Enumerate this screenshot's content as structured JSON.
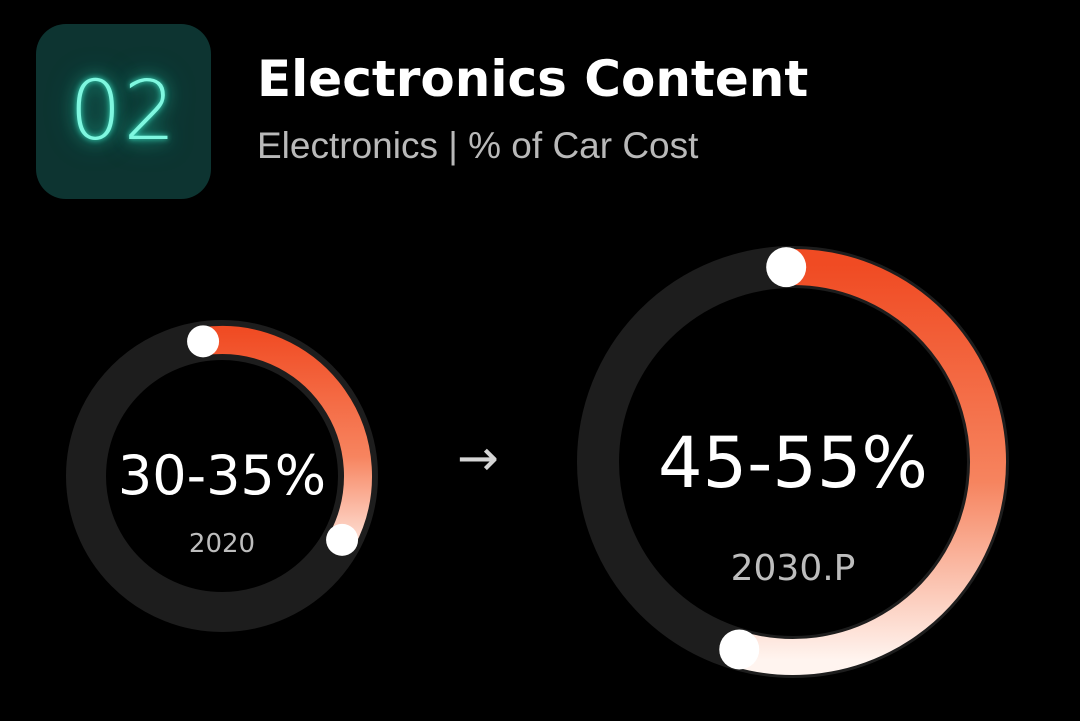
{
  "badge": {
    "number": "02"
  },
  "header": {
    "title": "Electronics Content",
    "subtitle": "Electronics | % of Car Cost"
  },
  "arrow": "→",
  "colors": {
    "accent": "#f04b23",
    "track": "#1d1d1d",
    "badge_bg": "#0d3431",
    "badge_glow": "#3fe7c8"
  },
  "chart_data": {
    "type": "pie",
    "unit": "%",
    "series": [
      {
        "label": "2020",
        "value_text": "30-35%",
        "range": [
          30,
          35
        ]
      },
      {
        "label": "2030.P",
        "value_text": "45-55%",
        "range": [
          45,
          55
        ]
      }
    ],
    "title": "",
    "legend": "none"
  }
}
